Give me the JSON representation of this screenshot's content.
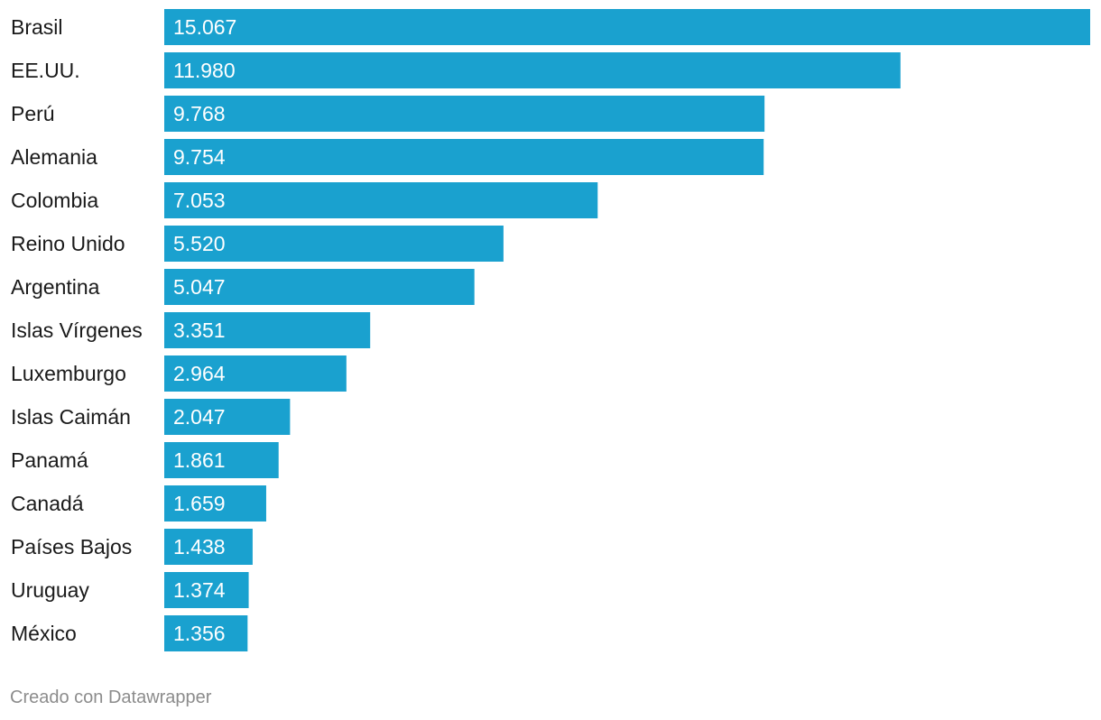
{
  "chart_data": {
    "type": "bar",
    "orientation": "horizontal",
    "categories": [
      "Brasil",
      "EE.UU.",
      "Perú",
      "Alemania",
      "Colombia",
      "Reino Unido",
      "Argentina",
      "Islas Vírgenes",
      "Luxemburgo",
      "Islas Caimán",
      "Panamá",
      "Canadá",
      "Países Bajos",
      "Uruguay",
      "México"
    ],
    "values": [
      15067,
      11980,
      9768,
      9754,
      7053,
      5520,
      5047,
      3351,
      2964,
      2047,
      1861,
      1659,
      1438,
      1374,
      1356
    ],
    "value_labels": [
      "15.067",
      "11.980",
      "9.768",
      "9.754",
      "7.053",
      "5.520",
      "5.047",
      "3.351",
      "2.964",
      "2.047",
      "1.861",
      "1.659",
      "1.438",
      "1.374",
      "1.356"
    ],
    "title": "",
    "xlabel": "",
    "ylabel": "",
    "xlim": [
      0,
      15067
    ],
    "bar_color": "#1aa1cf",
    "grid": false,
    "legend": "none"
  },
  "footer": {
    "credit": "Creado con Datawrapper"
  },
  "colors": {
    "bar": "#1aa1cf",
    "label_text": "#1a1a1a",
    "value_text": "#ffffff",
    "footer_text": "#8c8c8c",
    "background": "#ffffff"
  }
}
